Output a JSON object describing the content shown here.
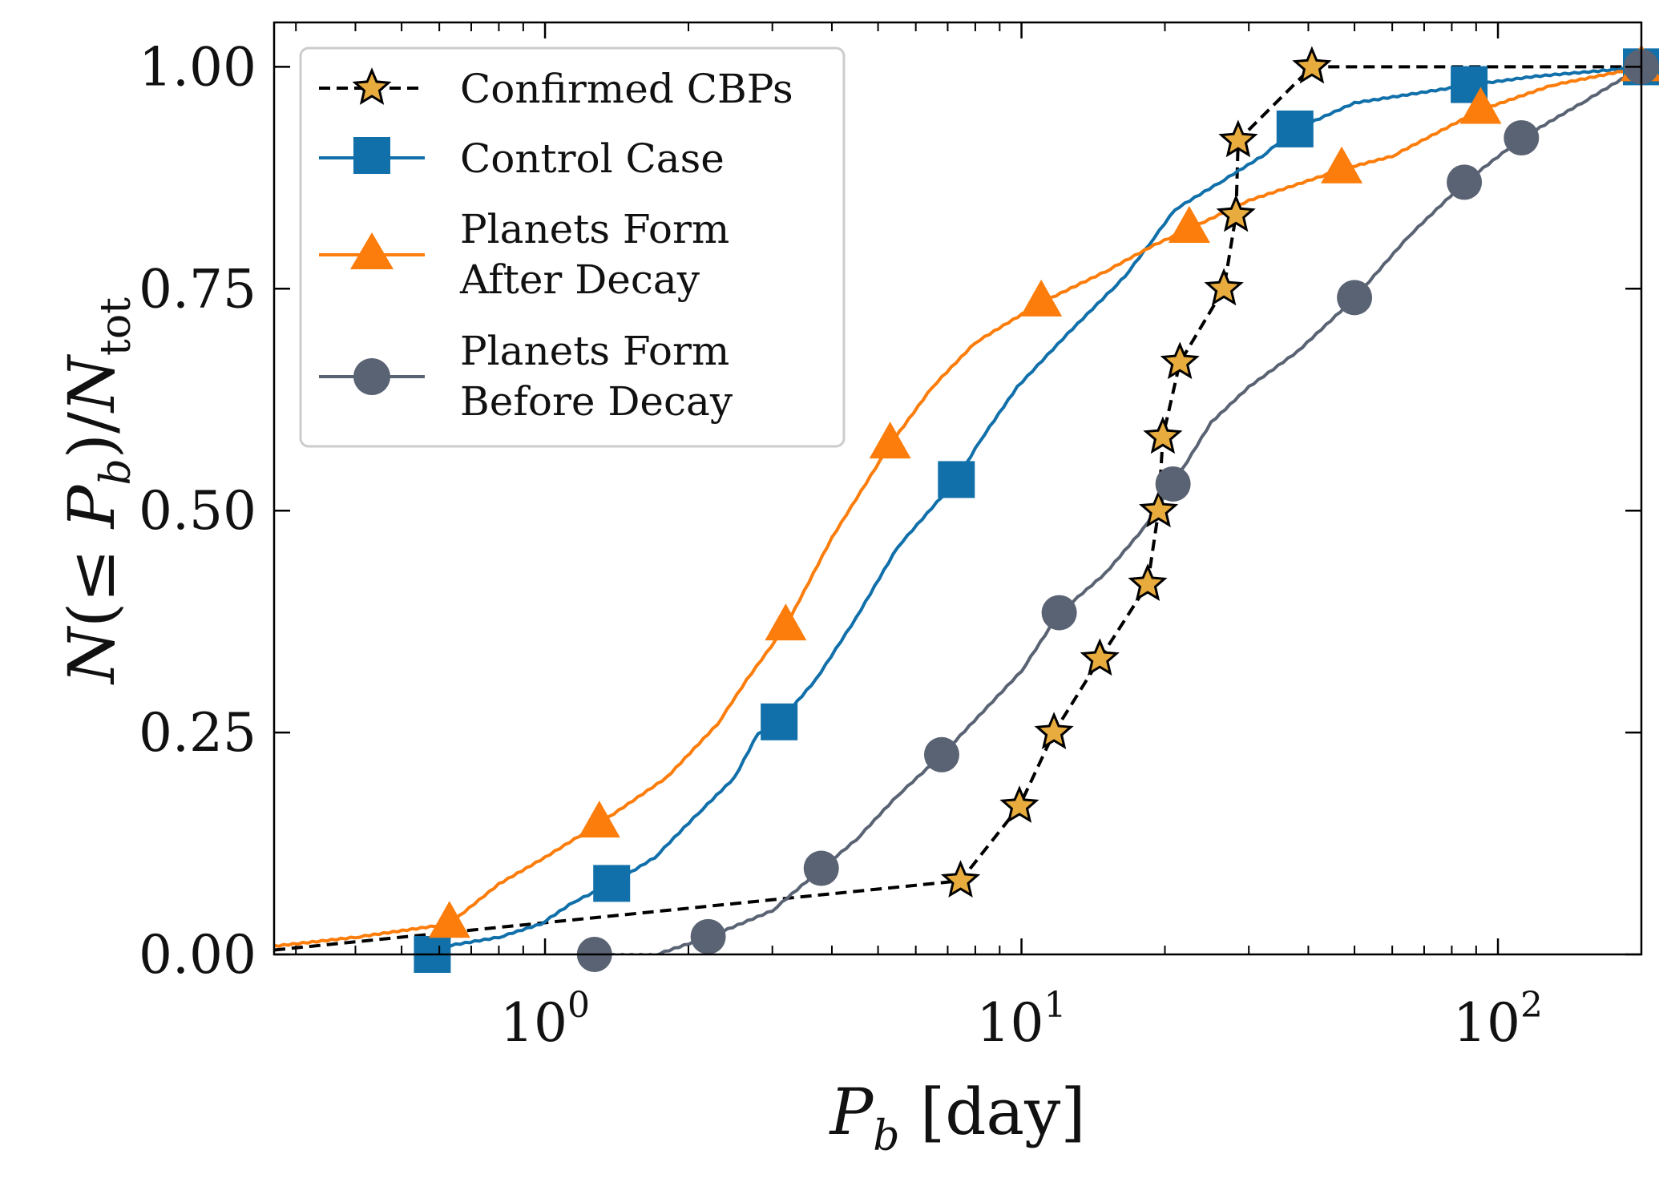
{
  "chart_data": {
    "type": "line",
    "x_scale": "log",
    "xlim": [
      0.27,
      200
    ],
    "ylim": [
      0,
      1.05
    ],
    "xlabel": "P_b [day]",
    "ylabel": "N(≤ P_b)/N_tot",
    "x_ticks": [
      {
        "value": 1,
        "label": "10^0"
      },
      {
        "value": 10,
        "label": "10^1"
      },
      {
        "value": 100,
        "label": "10^2"
      }
    ],
    "y_ticks": [
      {
        "value": 0.0,
        "label": "0.00"
      },
      {
        "value": 0.25,
        "label": "0.25"
      },
      {
        "value": 0.5,
        "label": "0.50"
      },
      {
        "value": 0.75,
        "label": "0.75"
      },
      {
        "value": 1.0,
        "label": "1.00"
      }
    ],
    "legend_position": "top-left",
    "series": [
      {
        "name": "Confirmed CBPs",
        "style": "dashed",
        "marker": "star",
        "color": "#000000",
        "marker_color": "#e8ac3e",
        "points": [
          [
            0.27,
            0.005
          ],
          [
            7.45,
            0.083
          ],
          [
            9.9,
            0.167
          ],
          [
            11.7,
            0.25
          ],
          [
            14.6,
            0.333
          ],
          [
            18.4,
            0.417
          ],
          [
            19.4,
            0.5
          ],
          [
            19.8,
            0.583
          ],
          [
            21.5,
            0.667
          ],
          [
            26.6,
            0.75
          ],
          [
            28.2,
            0.833
          ],
          [
            28.5,
            0.917
          ],
          [
            40.7,
            1.0
          ],
          [
            200,
            1.0
          ]
        ]
      },
      {
        "name": "Control Case",
        "style": "solid",
        "marker": "square",
        "color": "#1170aa",
        "points": [
          [
            0.58,
            0.0
          ],
          [
            0.62,
            0.01
          ],
          [
            0.8,
            0.02
          ],
          [
            0.98,
            0.035
          ],
          [
            1.15,
            0.06
          ],
          [
            1.38,
            0.08
          ],
          [
            1.7,
            0.11
          ],
          [
            2.1,
            0.16
          ],
          [
            2.5,
            0.2
          ],
          [
            2.8,
            0.25
          ],
          [
            3.1,
            0.262
          ],
          [
            3.7,
            0.31
          ],
          [
            4.5,
            0.38
          ],
          [
            5.5,
            0.46
          ],
          [
            7.3,
            0.535
          ],
          [
            8.2,
            0.58
          ],
          [
            9.8,
            0.64
          ],
          [
            12.5,
            0.7
          ],
          [
            15.5,
            0.75
          ],
          [
            16.5,
            0.765
          ],
          [
            18.5,
            0.8
          ],
          [
            21,
            0.84
          ],
          [
            26,
            0.87
          ],
          [
            32,
            0.9
          ],
          [
            37.5,
            0.93
          ],
          [
            50,
            0.96
          ],
          [
            87,
            0.98
          ],
          [
            120,
            0.99
          ],
          [
            200,
            1.0
          ]
        ]
      },
      {
        "name": "Planets Form After Decay",
        "style": "solid",
        "marker": "triangle",
        "color": "#fc7d0b",
        "points": [
          [
            0.27,
            0.01
          ],
          [
            0.4,
            0.02
          ],
          [
            0.63,
            0.035
          ],
          [
            0.8,
            0.08
          ],
          [
            1.0,
            0.11
          ],
          [
            1.3,
            0.148
          ],
          [
            1.8,
            0.2
          ],
          [
            2.3,
            0.26
          ],
          [
            2.65,
            0.31
          ],
          [
            3.2,
            0.37
          ],
          [
            4.0,
            0.47
          ],
          [
            5.3,
            0.575
          ],
          [
            6.5,
            0.64
          ],
          [
            8.0,
            0.69
          ],
          [
            11,
            0.735
          ],
          [
            15,
            0.77
          ],
          [
            19,
            0.8
          ],
          [
            22.5,
            0.818
          ],
          [
            30,
            0.85
          ],
          [
            47,
            0.885
          ],
          [
            60,
            0.9
          ],
          [
            92,
            0.952
          ],
          [
            130,
            0.98
          ],
          [
            200,
            1.0
          ]
        ]
      },
      {
        "name": "Planets Form Before Decay",
        "style": "solid",
        "marker": "circle",
        "color": "#5a6373",
        "points": [
          [
            1.27,
            0.0
          ],
          [
            1.7,
            0.0
          ],
          [
            2.2,
            0.02
          ],
          [
            3.0,
            0.05
          ],
          [
            3.8,
            0.097
          ],
          [
            4.5,
            0.13
          ],
          [
            5.5,
            0.18
          ],
          [
            6.8,
            0.225
          ],
          [
            8.5,
            0.28
          ],
          [
            10,
            0.32
          ],
          [
            12,
            0.385
          ],
          [
            15,
            0.43
          ],
          [
            18,
            0.48
          ],
          [
            20.8,
            0.53
          ],
          [
            25,
            0.6
          ],
          [
            30,
            0.64
          ],
          [
            38,
            0.68
          ],
          [
            50,
            0.74
          ],
          [
            65,
            0.81
          ],
          [
            85,
            0.87
          ],
          [
            112,
            0.92
          ],
          [
            150,
            0.96
          ],
          [
            200,
            1.0
          ]
        ]
      }
    ]
  },
  "legend": {
    "entries": [
      {
        "key": "cbp",
        "lines": [
          "Confirmed CBPs"
        ]
      },
      {
        "key": "control",
        "lines": [
          "Control Case"
        ]
      },
      {
        "key": "after",
        "lines": [
          "Planets Form",
          "After Decay"
        ]
      },
      {
        "key": "before",
        "lines": [
          "Planets Form",
          "Before Decay"
        ]
      }
    ]
  }
}
